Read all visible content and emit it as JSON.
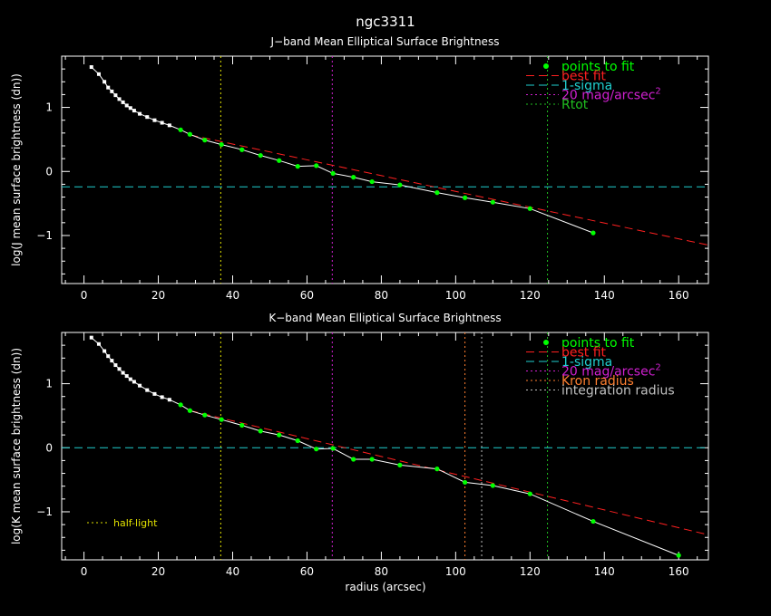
{
  "figure": {
    "title": "ngc3311",
    "xlabel": "radius (arcsec)",
    "colors": {
      "background": "#000000",
      "axes": "#ffffff",
      "points": "#00ff00",
      "profile_line": "#ffffff",
      "best_fit": "#ff2020",
      "sigma": "#20d0d0",
      "mag20": "#d020d0",
      "rtot": "#20c020",
      "kron": "#ff7f30",
      "integration": "#c0c0c0",
      "half_light": "#e0e000"
    }
  },
  "chart_data": [
    {
      "type": "line",
      "title": "J−band Mean Elliptical Surface Brightness",
      "xlabel": "",
      "ylabel": "log(J mean surface brightness (dn))",
      "xlim": [
        -6,
        168
      ],
      "ylim": [
        -1.75,
        1.8
      ],
      "xticks": [
        0,
        20,
        40,
        60,
        80,
        100,
        120,
        140,
        160
      ],
      "yticks": [
        -1,
        0,
        1
      ],
      "inner_profile": {
        "x": [
          2,
          4,
          5.5,
          6.5,
          7.5,
          8.5,
          9.5,
          10.5,
          11.5,
          12.5,
          13.5,
          15,
          17,
          19,
          21,
          23
        ],
        "y": [
          1.63,
          1.52,
          1.4,
          1.31,
          1.25,
          1.19,
          1.13,
          1.08,
          1.03,
          0.99,
          0.95,
          0.9,
          0.85,
          0.8,
          0.76,
          0.72
        ]
      },
      "fit_points": {
        "name": "points to fit",
        "x": [
          26,
          28.5,
          32.5,
          37,
          42.5,
          47.5,
          52.5,
          57.5,
          62.5,
          67,
          72.5,
          77.5,
          85,
          95,
          102.5,
          110,
          120,
          137
        ],
        "y": [
          0.65,
          0.58,
          0.49,
          0.42,
          0.34,
          0.25,
          0.17,
          0.08,
          0.09,
          -0.03,
          -0.09,
          -0.16,
          -0.21,
          -0.33,
          -0.41,
          -0.48,
          -0.58,
          -0.96
        ]
      },
      "best_fit": {
        "name": "best fit",
        "x": [
          28.5,
          168
        ],
        "y": [
          0.57,
          -1.15
        ]
      },
      "sigma_level": {
        "name": "1-sigma",
        "y": -0.24
      },
      "vlines": [
        {
          "name": "half-light",
          "x": 36.8,
          "color_key": "half_light"
        },
        {
          "name": "20 mag/arcsec",
          "x": 66.8,
          "color_key": "mag20"
        },
        {
          "name": "Rtot",
          "x": 124.7,
          "color_key": "rtot"
        }
      ],
      "legend": {
        "placement": "top-right",
        "entries": [
          {
            "label": "points to fit",
            "style": "point",
            "color_key": "points"
          },
          {
            "label": "best fit",
            "style": "dashed",
            "color_key": "best_fit"
          },
          {
            "label": "1-sigma",
            "style": "dashed",
            "color_key": "sigma"
          },
          {
            "label": "20 mag/arcsec",
            "sup": "2",
            "style": "dotted",
            "color_key": "mag20"
          },
          {
            "label": "Rtot",
            "style": "dotted",
            "color_key": "rtot"
          }
        ]
      }
    },
    {
      "type": "line",
      "title": "K−band Mean Elliptical Surface Brightness",
      "xlabel": "radius (arcsec)",
      "ylabel": "log(K mean surface brightness (dn))",
      "xlim": [
        -6,
        168
      ],
      "ylim": [
        -1.75,
        1.8
      ],
      "xticks": [
        0,
        20,
        40,
        60,
        80,
        100,
        120,
        140,
        160
      ],
      "yticks": [
        -1,
        0,
        1
      ],
      "inner_profile": {
        "x": [
          2,
          4,
          5.5,
          6.5,
          7.5,
          8.5,
          9.5,
          10.5,
          11.5,
          12.5,
          13.5,
          15,
          17,
          19,
          21,
          23
        ],
        "y": [
          1.72,
          1.62,
          1.51,
          1.43,
          1.36,
          1.29,
          1.23,
          1.17,
          1.12,
          1.07,
          1.03,
          0.97,
          0.9,
          0.84,
          0.79,
          0.75
        ]
      },
      "fit_points": {
        "name": "points to fit",
        "x": [
          26,
          28.5,
          32.5,
          37,
          42.5,
          47.5,
          52.5,
          57.5,
          62.5,
          67,
          72.5,
          77.5,
          85,
          95,
          102.5,
          110,
          120,
          137,
          160
        ],
        "y": [
          0.67,
          0.58,
          0.51,
          0.44,
          0.35,
          0.26,
          0.2,
          0.11,
          -0.02,
          -0.01,
          -0.18,
          -0.18,
          -0.27,
          -0.33,
          -0.54,
          -0.59,
          -0.72,
          -1.15,
          -1.68
        ]
      },
      "best_fit": {
        "name": "best fit",
        "x": [
          28.5,
          168
        ],
        "y": [
          0.58,
          -1.36
        ]
      },
      "sigma_level": {
        "name": "1-sigma",
        "y": 0.0
      },
      "vlines": [
        {
          "name": "half-light",
          "x": 36.8,
          "color_key": "half_light"
        },
        {
          "name": "20 mag/arcsec",
          "x": 66.8,
          "color_key": "mag20"
        },
        {
          "name": "Kron radius",
          "x": 102.5,
          "color_key": "kron"
        },
        {
          "name": "integration radius",
          "x": 107,
          "color_key": "integration"
        },
        {
          "name": "Rtot",
          "x": 124.7,
          "color_key": "rtot"
        }
      ],
      "legend": {
        "placement": "top-right",
        "entries": [
          {
            "label": "points to fit",
            "style": "point",
            "color_key": "points"
          },
          {
            "label": "best fit",
            "style": "dashed",
            "color_key": "best_fit"
          },
          {
            "label": "1-sigma",
            "style": "dashed",
            "color_key": "sigma"
          },
          {
            "label": "20 mag/arcsec",
            "sup": "2",
            "style": "dotted",
            "color_key": "mag20"
          },
          {
            "label": "Kron radius",
            "style": "dotted",
            "color_key": "kron"
          },
          {
            "label": "integration radius",
            "style": "dotted",
            "color_key": "integration"
          }
        ]
      },
      "annotation": {
        "label": "half-light",
        "style": "dotted",
        "color_key": "half_light",
        "placement": "bottom-left"
      }
    }
  ]
}
